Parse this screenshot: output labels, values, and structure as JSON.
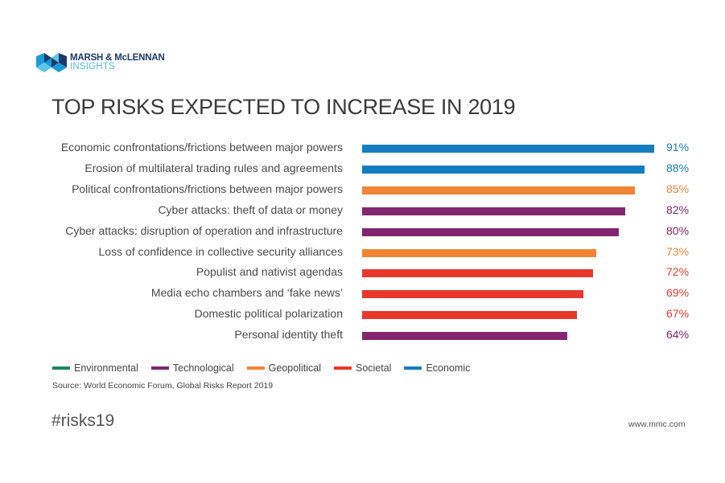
{
  "brand": {
    "name": "MARSH & McLENNAN",
    "subtitle": "INSIGHTS",
    "logo_icon": "mmc-logo-icon"
  },
  "chart_data": {
    "type": "bar",
    "orientation": "horizontal",
    "title": "TOP RISKS EXPECTED TO INCREASE IN 2019",
    "xlabel": "",
    "ylabel": "",
    "xlim": [
      0,
      100
    ],
    "grid": false,
    "value_suffix": "%",
    "legend_position": "bottom-left",
    "categories": [
      "Economic confrontations/frictions between major powers",
      "Erosion of multilateral trading rules and agreements",
      "Political confrontations/frictions between major powers",
      "Cyber attacks: theft of data or money",
      "Cyber attacks: disruption of operation and infrastructure",
      "Loss of confidence in collective security alliances",
      "Populist and nativist agendas",
      "Media echo chambers and ‘fake news’",
      "Domestic political polarization",
      "Personal identity theft"
    ],
    "values": [
      91,
      88,
      85,
      82,
      80,
      73,
      72,
      69,
      67,
      64
    ],
    "value_labels": [
      "91%",
      "88%",
      "85%",
      "82%",
      "80%",
      "73%",
      "72%",
      "69%",
      "67%",
      "64%"
    ],
    "category_groups": [
      "Economic",
      "Economic",
      "Geopolitical",
      "Technological",
      "Technological",
      "Geopolitical",
      "Societal",
      "Societal",
      "Societal",
      "Technological"
    ],
    "legend": [
      {
        "name": "Environmental",
        "color": "#1a8a5e"
      },
      {
        "name": "Technological",
        "color": "#83266f"
      },
      {
        "name": "Geopolitical",
        "color": "#f28434"
      },
      {
        "name": "Societal",
        "color": "#e8382b"
      },
      {
        "name": "Economic",
        "color": "#137dc2"
      }
    ],
    "source": "Source: World Economic Forum, Global Risks Report 2019"
  },
  "footer": {
    "hashtag": "#risks19",
    "url": "www.mmc.com"
  }
}
